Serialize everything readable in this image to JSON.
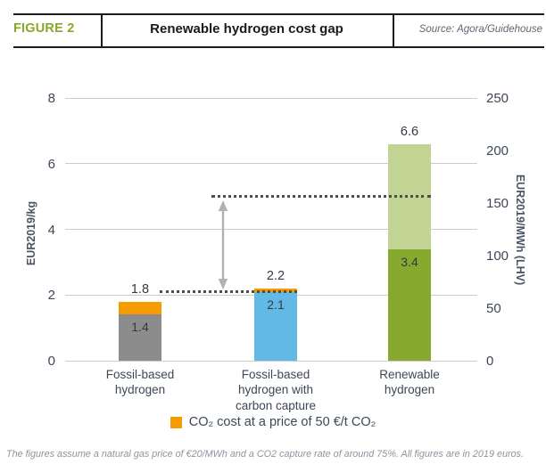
{
  "header": {
    "figure_tag": "FIGURE 2",
    "title": "Renewable hydrogen cost gap",
    "source": "Source: Agora/Guidehouse"
  },
  "legend": {
    "swatch_color": "#f59c00",
    "label": "CO₂ cost at a price of 50 €/t CO₂"
  },
  "footnote": "The figures assume a natural gas price of €20/MWh and a CO2 capture rate of around 75%. All figures are in 2019 euros.",
  "chart_data": {
    "type": "bar",
    "stacked": true,
    "title": "Renewable hydrogen cost gap",
    "grid": true,
    "legend_position": "bottom",
    "categories": [
      "Fossil-based\nhydrogen",
      "Fossil-based\nhydrogen with\ncarbon capture",
      "Renewable\nhydrogen"
    ],
    "bars": [
      {
        "category": "Fossil-based hydrogen",
        "total": 1.8,
        "total_label": "1.8",
        "segments": [
          {
            "name": "production-cost",
            "value": 1.4,
            "label": "1.4",
            "color": "#8c8c8c"
          },
          {
            "name": "co2-cost",
            "value": 0.4,
            "color": "#f59c00"
          }
        ]
      },
      {
        "category": "Fossil-based hydrogen with carbon capture",
        "total": 2.2,
        "total_label": "2.2",
        "segments": [
          {
            "name": "production-cost",
            "value": 2.1,
            "label": "2.1",
            "color": "#63b9e5"
          },
          {
            "name": "co2-cost",
            "value": 0.1,
            "color": "#f59c00"
          }
        ]
      },
      {
        "category": "Renewable hydrogen",
        "total": 6.6,
        "total_label": "6.6",
        "segments": [
          {
            "name": "cost-lower",
            "value": 3.4,
            "label": "3.4",
            "color": "#87a92d"
          },
          {
            "name": "cost-range-upper",
            "value": 3.2,
            "color": "#c2d494"
          }
        ]
      }
    ],
    "y_axis_left": {
      "label": "EUR2019/kg",
      "min": 0,
      "max": 8,
      "ticks": [
        0,
        2,
        4,
        6,
        8
      ]
    },
    "y_axis_right": {
      "label": "EUR2019/MWh (LHV)",
      "min": 0,
      "max": 250,
      "ticks": [
        0,
        50,
        100,
        150,
        200,
        250
      ]
    },
    "annotations": {
      "reference_line_low": {
        "level": 2.1
      },
      "reference_line_high": {
        "level": 5.0
      },
      "gap_arrow": {
        "from": 2.1,
        "to": 5.0
      }
    }
  }
}
